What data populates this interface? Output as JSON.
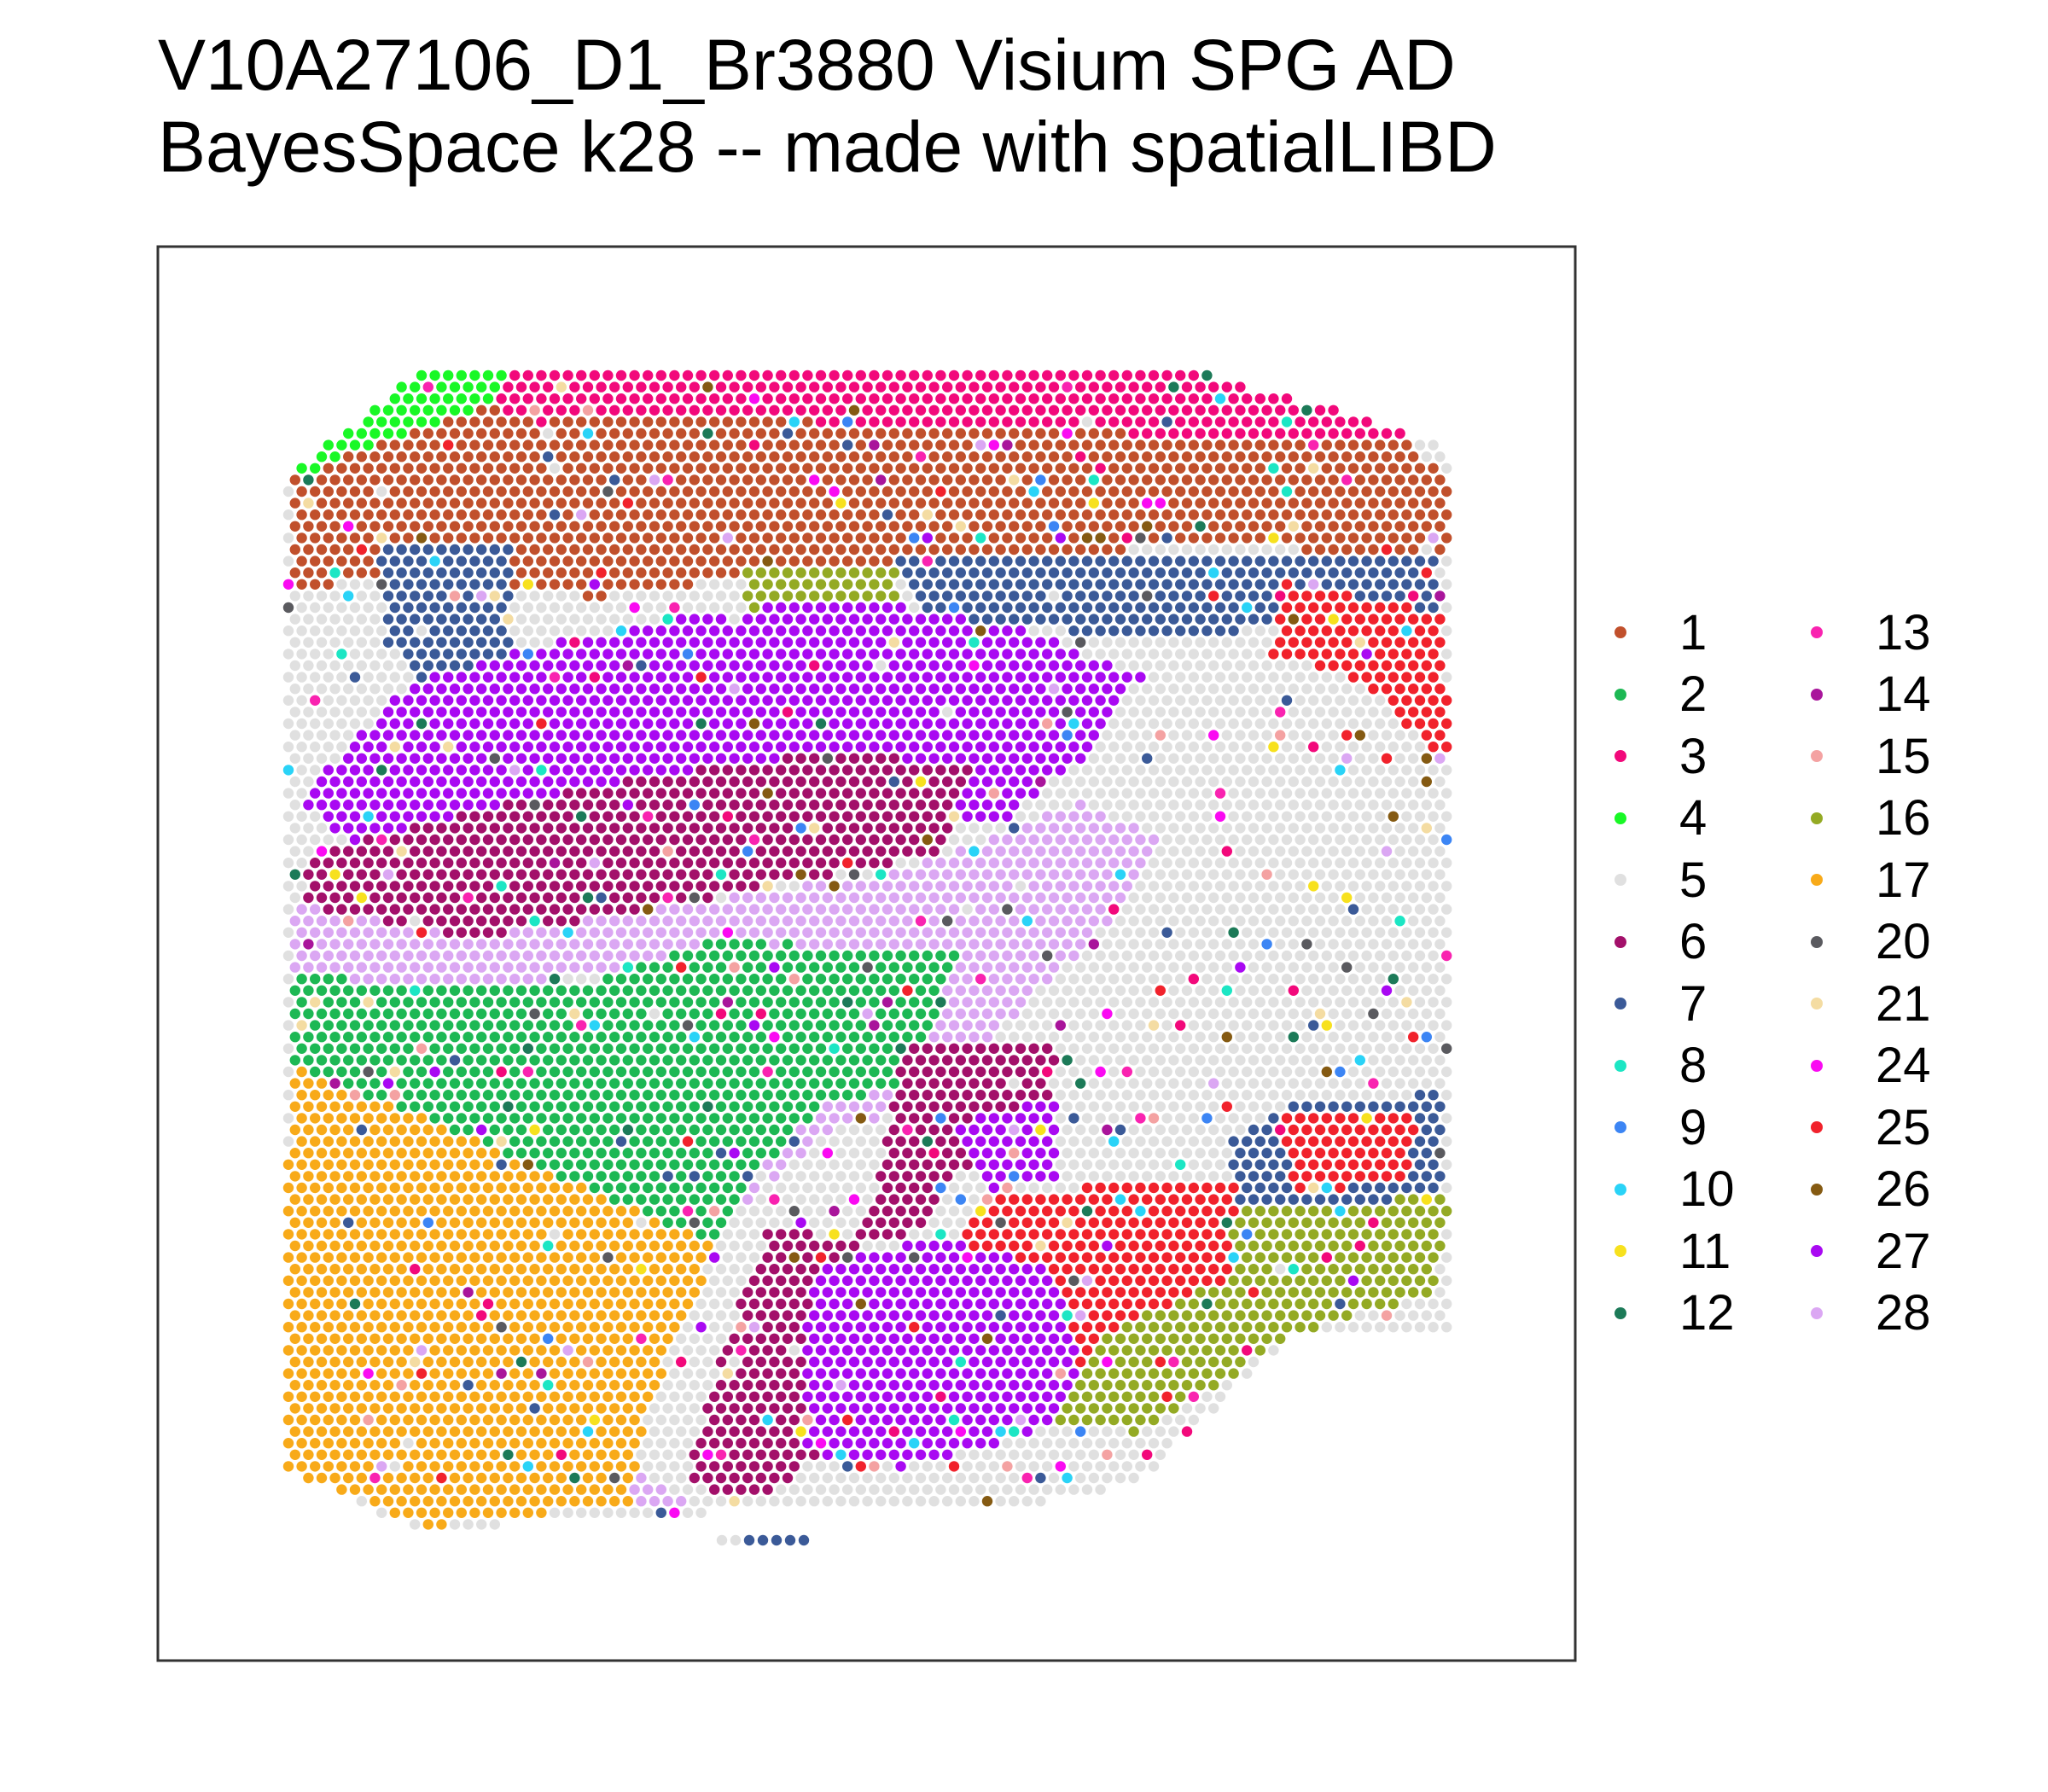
{
  "title_lines": [
    "V10A27106_D1_Br3880 Visium SPG AD",
    "BayesSpace k28 -- made with spatialLIBD"
  ],
  "chart_data": {
    "type": "scatter",
    "title": "V10A27106_D1_Br3880 Visium SPG AD BayesSpace k28 -- made with spatialLIBD",
    "grid": false,
    "axes_visible": false,
    "legend_position": "right",
    "clusters": [
      {
        "id": "1",
        "color": "#C1502C"
      },
      {
        "id": "2",
        "color": "#1DB854"
      },
      {
        "id": "3",
        "color": "#F2097B"
      },
      {
        "id": "4",
        "color": "#19F826"
      },
      {
        "id": "5",
        "color": "#E0E0E0"
      },
      {
        "id": "6",
        "color": "#A3106A"
      },
      {
        "id": "7",
        "color": "#3B5A98"
      },
      {
        "id": "8",
        "color": "#1CE6C4"
      },
      {
        "id": "9",
        "color": "#3C85F4"
      },
      {
        "id": "10",
        "color": "#2AD3F7"
      },
      {
        "id": "11",
        "color": "#F7E11E"
      },
      {
        "id": "12",
        "color": "#1C7A58"
      },
      {
        "id": "13",
        "color": "#F923B0"
      },
      {
        "id": "14",
        "color": "#A9159B"
      },
      {
        "id": "15",
        "color": "#F4A2A2"
      },
      {
        "id": "16",
        "color": "#94AA24"
      },
      {
        "id": "17",
        "color": "#F8AA19"
      },
      {
        "id": "20",
        "color": "#5A5A5F"
      },
      {
        "id": "21",
        "color": "#F4DCA2"
      },
      {
        "id": "24",
        "color": "#FA0AF2"
      },
      {
        "id": "25",
        "color": "#F1222C"
      },
      {
        "id": "26",
        "color": "#855A12"
      },
      {
        "id": "27",
        "color": "#A909F2"
      },
      {
        "id": "28",
        "color": "#DBA7F3"
      }
    ]
  }
}
